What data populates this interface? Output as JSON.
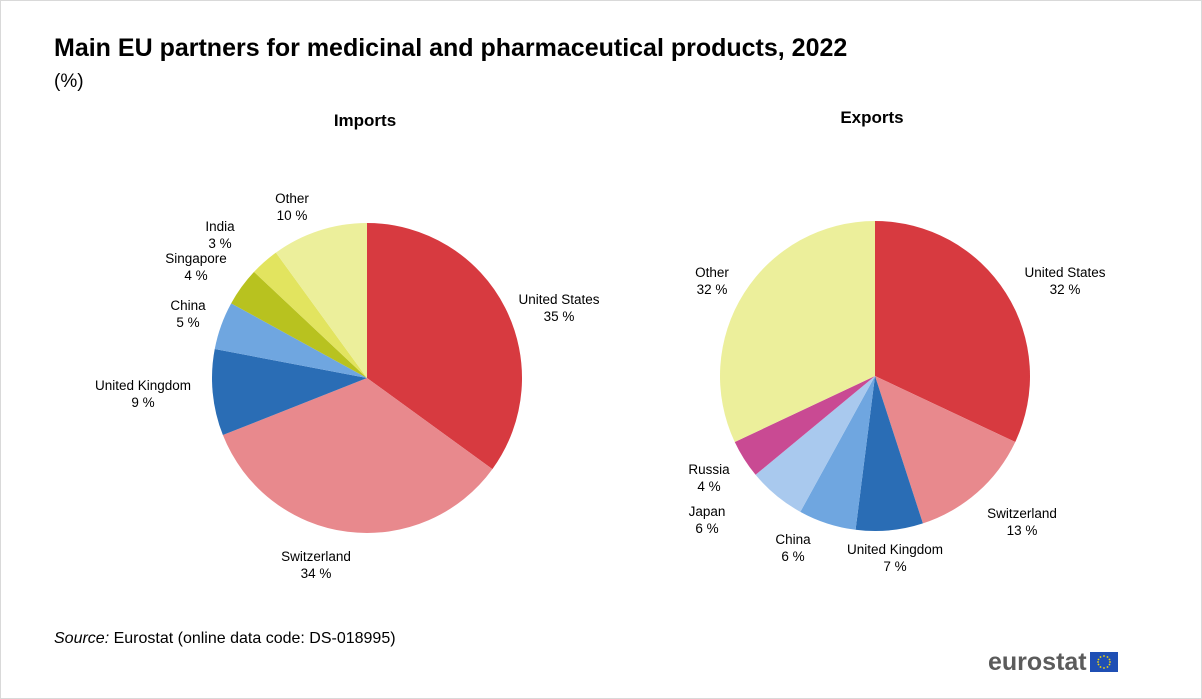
{
  "title": "Main EU partners for medicinal  and pharmaceutical products, 2022",
  "subtitle": "(%)",
  "source": {
    "label": "Source:",
    "text": "Eurostat (online data code: DS-018995)"
  },
  "logo": "eurostat",
  "chart_data": [
    {
      "type": "pie",
      "title": "Imports",
      "slices": [
        {
          "label": "United States",
          "value": 35,
          "display": "35 %",
          "color": "#d73a40"
        },
        {
          "label": "Switzerland",
          "value": 34,
          "display": "34 %",
          "color": "#e8898d"
        },
        {
          "label": "United Kingdom",
          "value": 9,
          "display": "9 %",
          "color": "#2a6db5"
        },
        {
          "label": "China",
          "value": 5,
          "display": "5 %",
          "color": "#6fa6e0"
        },
        {
          "label": "Singapore",
          "value": 4,
          "display": "4 %",
          "color": "#b8c21f"
        },
        {
          "label": "India",
          "value": 3,
          "display": "3 %",
          "color": "#e2e45f"
        },
        {
          "label": "Other",
          "value": 10,
          "display": "10 %",
          "color": "#ecef9b"
        }
      ]
    },
    {
      "type": "pie",
      "title": "Exports",
      "slices": [
        {
          "label": "United States",
          "value": 32,
          "display": "32 %",
          "color": "#d73a40"
        },
        {
          "label": "Switzerland",
          "value": 13,
          "display": "13 %",
          "color": "#e8898d"
        },
        {
          "label": "United Kingdom",
          "value": 7,
          "display": "7 %",
          "color": "#2a6db5"
        },
        {
          "label": "China",
          "value": 6,
          "display": "6 %",
          "color": "#6fa6e0"
        },
        {
          "label": "Japan",
          "value": 6,
          "display": "6 %",
          "color": "#a9c9ee"
        },
        {
          "label": "Russia",
          "value": 4,
          "display": "4 %",
          "color": "#c94a93"
        },
        {
          "label": "Other",
          "value": 32,
          "display": "32 %",
          "color": "#ecef9b"
        }
      ]
    }
  ]
}
